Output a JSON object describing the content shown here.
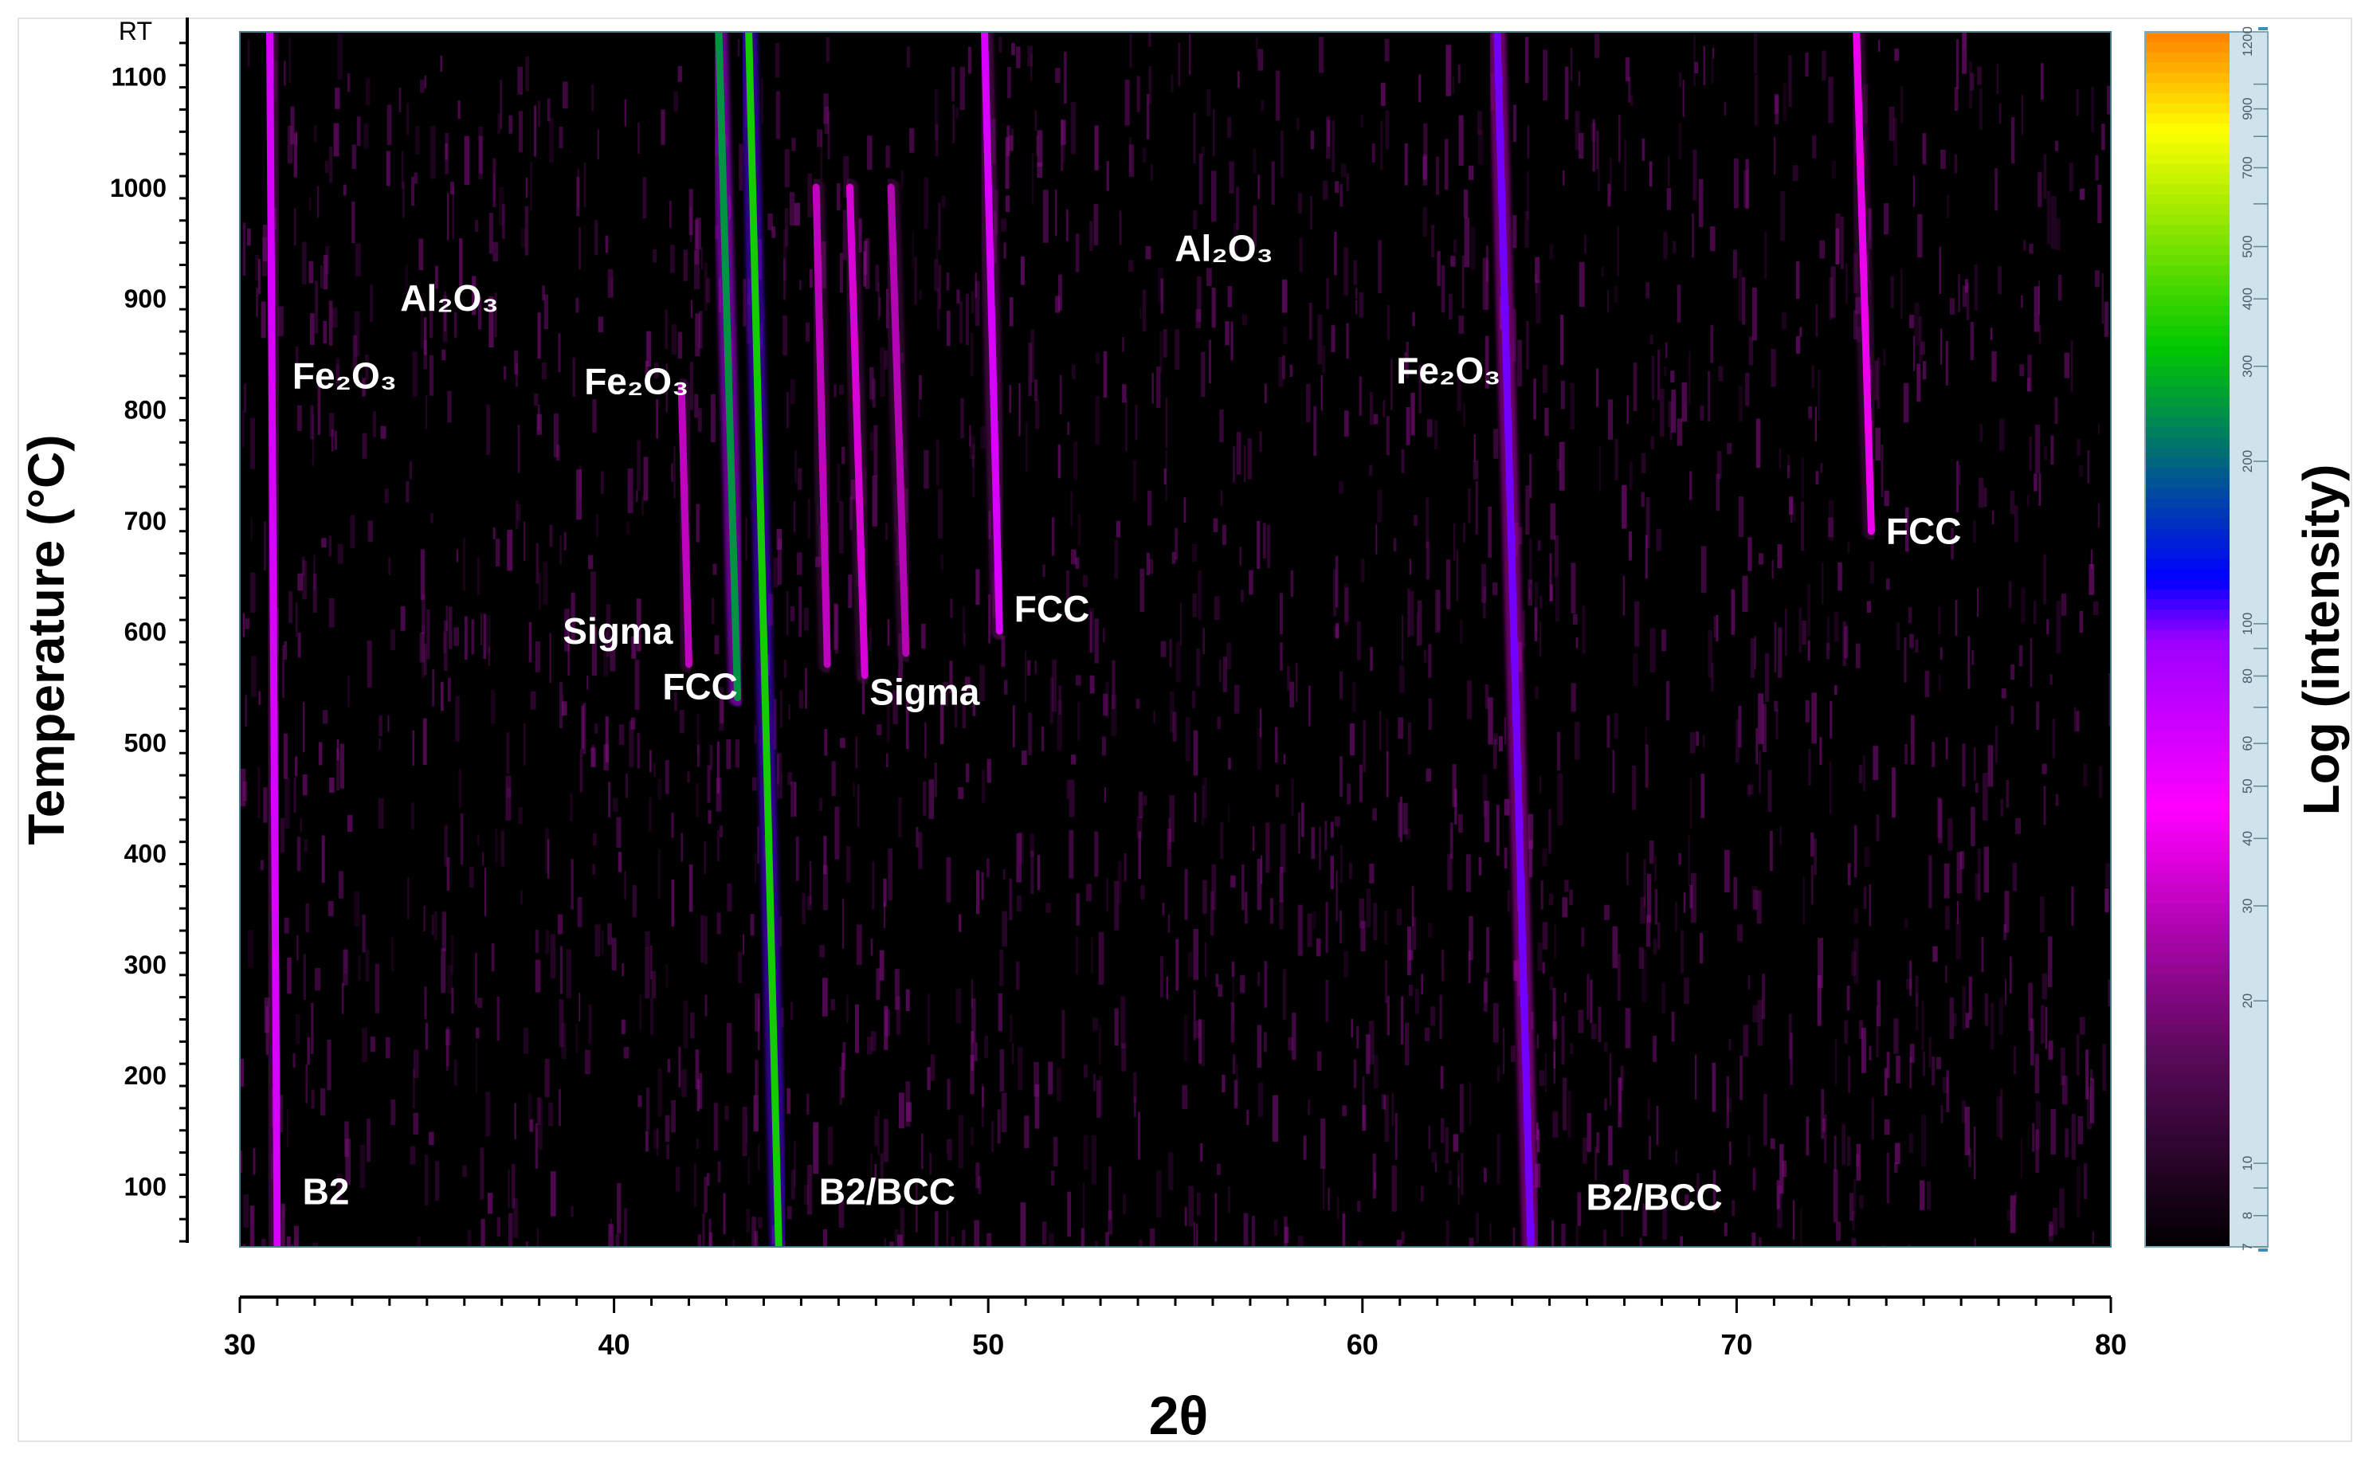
{
  "chart_data": {
    "type": "heatmap",
    "title": "",
    "xlabel": "2θ",
    "ylabel": "Temperature (°C)",
    "colorbar_label": "Log (intensity)",
    "xlim": [
      30,
      80
    ],
    "ylim": [
      45,
      1140
    ],
    "x_ticks": [
      30,
      40,
      50,
      60,
      70,
      80
    ],
    "y_ticks": [
      100,
      200,
      300,
      400,
      500,
      600,
      700,
      800,
      900,
      1000,
      1100
    ],
    "y_top_label": "RT",
    "colorbar_ticks": [
      7,
      8,
      10,
      20,
      30,
      40,
      50,
      60,
      80,
      100,
      200,
      300,
      400,
      500,
      700,
      900,
      1200
    ],
    "colorbar_range": [
      7,
      1250
    ],
    "colormap": [
      "#000000",
      "#5a0a5a",
      "#ff00ff",
      "#9b00ff",
      "#0000ff",
      "#00c800",
      "#ffff00",
      "#ff8000"
    ],
    "peak_lines": [
      {
        "phase": "B2",
        "x_bottom": 31.0,
        "x_top": 30.8,
        "y_start": 45,
        "y_end": 1140,
        "intensity": 60
      },
      {
        "phase": "B2/BCC",
        "x_bottom": 44.4,
        "x_top": 43.6,
        "y_start": 45,
        "y_end": 1140,
        "intensity": 350
      },
      {
        "phase": "B2/BCC",
        "x_bottom": 64.5,
        "x_top": 63.6,
        "y_start": 45,
        "y_end": 1140,
        "intensity": 100
      },
      {
        "phase": "Sigma",
        "x_bottom": 42.0,
        "x_top": 41.8,
        "y_start": 570,
        "y_end": 820,
        "intensity": 30
      },
      {
        "phase": "FCC",
        "x_bottom": 43.3,
        "x_top": 42.8,
        "y_start": 540,
        "y_end": 1140,
        "intensity": 250
      },
      {
        "phase": "Sigma",
        "x_bottom": 45.7,
        "x_top": 45.4,
        "y_start": 570,
        "y_end": 1000,
        "intensity": 30
      },
      {
        "phase": "Sigma",
        "x_bottom": 46.7,
        "x_top": 46.3,
        "y_start": 560,
        "y_end": 1000,
        "intensity": 35
      },
      {
        "phase": "Sigma",
        "x_bottom": 47.8,
        "x_top": 47.4,
        "y_start": 580,
        "y_end": 1000,
        "intensity": 28
      },
      {
        "phase": "FCC",
        "x_bottom": 50.3,
        "x_top": 49.9,
        "y_start": 600,
        "y_end": 1140,
        "intensity": 60
      },
      {
        "phase": "FCC",
        "x_bottom": 73.6,
        "x_top": 73.2,
        "y_start": 690,
        "y_end": 1140,
        "intensity": 40
      }
    ],
    "annotations": [
      {
        "x": 32.8,
        "y": 830,
        "text": "Fe₂O₃"
      },
      {
        "x": 35.6,
        "y": 900,
        "text": "Al₂O₃"
      },
      {
        "x": 40.6,
        "y": 825,
        "text": "Fe₂O₃"
      },
      {
        "x": 56.3,
        "y": 945,
        "text": "Al₂O₃"
      },
      {
        "x": 62.3,
        "y": 835,
        "text": "Fe₂O₃"
      },
      {
        "x": 40.1,
        "y": 600,
        "text": "Sigma"
      },
      {
        "x": 42.3,
        "y": 550,
        "text": "FCC"
      },
      {
        "x": 48.3,
        "y": 545,
        "text": "Sigma"
      },
      {
        "x": 51.7,
        "y": 620,
        "text": "FCC"
      },
      {
        "x": 75.0,
        "y": 690,
        "text": "FCC"
      },
      {
        "x": 32.3,
        "y": 95,
        "text": "B2"
      },
      {
        "x": 47.3,
        "y": 95,
        "text": "B2/BCC"
      },
      {
        "x": 67.8,
        "y": 90,
        "text": "B2/BCC"
      }
    ]
  }
}
